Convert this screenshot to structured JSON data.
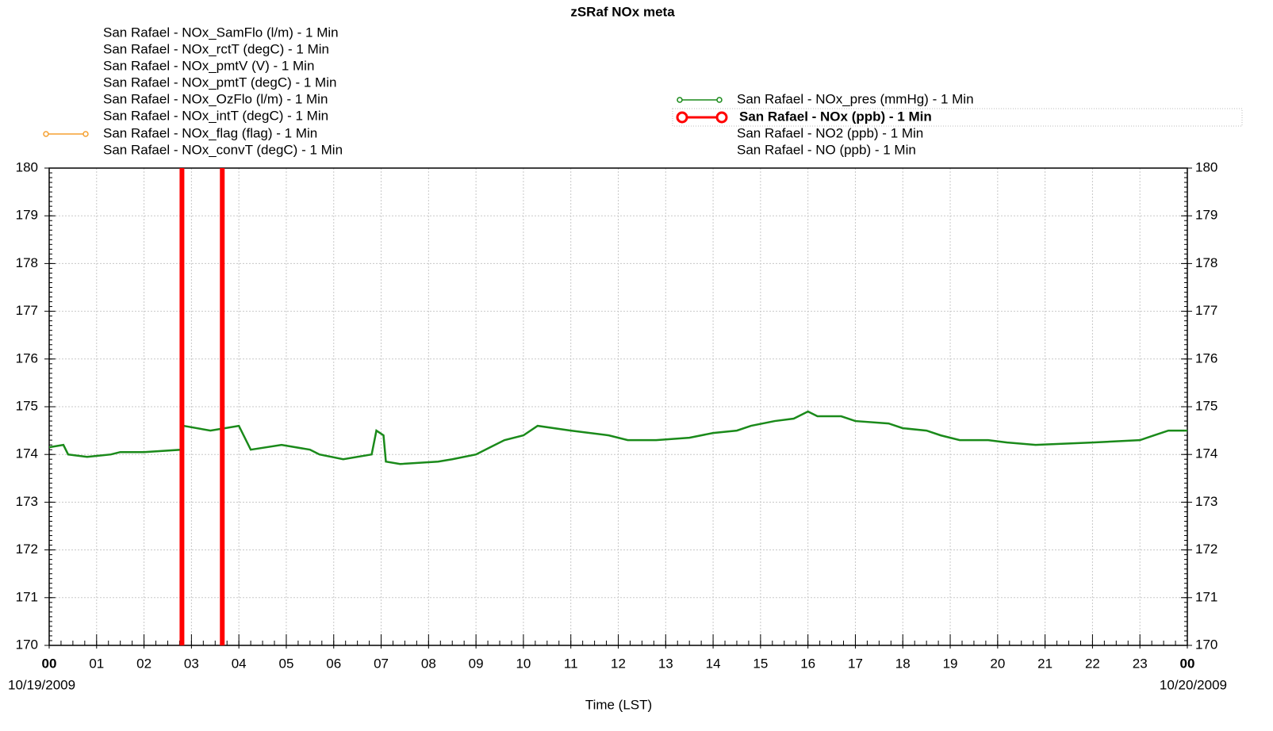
{
  "chart_data": {
    "type": "line",
    "title": "zSRaf NOx meta",
    "x_label": "Time (LST)",
    "start_date": "10/19/2009",
    "end_date": "10/20/2009",
    "xlim": [
      0,
      24
    ],
    "xticks": [
      {
        "value": 0,
        "label": "00"
      },
      {
        "value": 1,
        "label": "01"
      },
      {
        "value": 2,
        "label": "02"
      },
      {
        "value": 3,
        "label": "03"
      },
      {
        "value": 4,
        "label": "04"
      },
      {
        "value": 5,
        "label": "05"
      },
      {
        "value": 6,
        "label": "06"
      },
      {
        "value": 7,
        "label": "07"
      },
      {
        "value": 8,
        "label": "08"
      },
      {
        "value": 9,
        "label": "09"
      },
      {
        "value": 10,
        "label": "10"
      },
      {
        "value": 11,
        "label": "11"
      },
      {
        "value": 12,
        "label": "12"
      },
      {
        "value": 13,
        "label": "13"
      },
      {
        "value": 14,
        "label": "14"
      },
      {
        "value": 15,
        "label": "15"
      },
      {
        "value": 16,
        "label": "16"
      },
      {
        "value": 17,
        "label": "17"
      },
      {
        "value": 18,
        "label": "18"
      },
      {
        "value": 19,
        "label": "19"
      },
      {
        "value": 20,
        "label": "20"
      },
      {
        "value": 21,
        "label": "21"
      },
      {
        "value": 22,
        "label": "22"
      },
      {
        "value": 23,
        "label": "23"
      },
      {
        "value": 24,
        "label": "00"
      }
    ],
    "ylim": [
      170,
      180
    ],
    "yticks": [
      170,
      171,
      172,
      173,
      174,
      175,
      176,
      177,
      178,
      179,
      180
    ],
    "grid": true,
    "series": [
      {
        "name": "San Rafael - NOx_SamFlo (l/m) - 1 Min",
        "visible": false
      },
      {
        "name": "San Rafael - NOx_rctT (degC) - 1 Min",
        "visible": false
      },
      {
        "name": "San Rafael - NOx_pmtV (V) - 1 Min",
        "visible": false
      },
      {
        "name": "San Rafael - NOx_pmtT (degC) - 1 Min",
        "visible": false
      },
      {
        "name": "San Rafael - NOx_OzFlo (l/m) - 1 Min",
        "visible": false
      },
      {
        "name": "San Rafael - NOx_intT (degC) - 1 Min",
        "visible": false
      },
      {
        "name": "San Rafael - NOx_flag (flag) - 1 Min",
        "visible": true,
        "color": "#f5a030"
      },
      {
        "name": "San Rafael - NOx_convT (degC) - 1 Min",
        "visible": false
      },
      {
        "name": "San Rafael - NOx_pres (mmHg) - 1 Min",
        "visible": true,
        "color": "#1a8a1a",
        "x": [
          0,
          0.3,
          0.4,
          0.8,
          1.3,
          1.5,
          2.0,
          2.8,
          2.83,
          3.4,
          4.0,
          4.25,
          4.9,
          5.5,
          5.7,
          6.2,
          6.8,
          6.9,
          7.05,
          7.1,
          7.4,
          8.2,
          8.5,
          9.0,
          9.3,
          9.6,
          10.0,
          10.3,
          11.0,
          11.8,
          12.2,
          12.8,
          13.5,
          14.0,
          14.5,
          14.8,
          15.3,
          15.7,
          16.0,
          16.2,
          16.7,
          17.0,
          17.7,
          18.0,
          18.5,
          18.8,
          19.2,
          19.8,
          20.2,
          20.8,
          22.0,
          23.0,
          23.3,
          23.6,
          24
        ],
        "values": [
          174.15,
          174.2,
          174.0,
          173.95,
          174.0,
          174.05,
          174.05,
          174.1,
          174.6,
          174.5,
          174.6,
          174.1,
          174.2,
          174.1,
          174.0,
          173.9,
          174.0,
          174.5,
          174.4,
          173.85,
          173.8,
          173.85,
          173.9,
          174.0,
          174.15,
          174.3,
          174.4,
          174.6,
          174.5,
          174.4,
          174.3,
          174.3,
          174.35,
          174.45,
          174.5,
          174.6,
          174.7,
          174.75,
          174.9,
          174.8,
          174.8,
          174.7,
          174.65,
          174.55,
          174.5,
          174.4,
          174.3,
          174.3,
          174.25,
          174.2,
          174.25,
          174.3,
          174.4,
          174.5,
          174.5
        ]
      },
      {
        "name": "San Rafael - NOx (ppb) - 1 Min",
        "visible": true,
        "selected": true,
        "color": "#ff0000",
        "x": [
          2.8,
          3.65
        ]
      },
      {
        "name": "San Rafael - NO2 (ppb) - 1 Min",
        "visible": false
      },
      {
        "name": "San Rafael - NO (ppb) - 1 Min",
        "visible": false
      }
    ]
  }
}
